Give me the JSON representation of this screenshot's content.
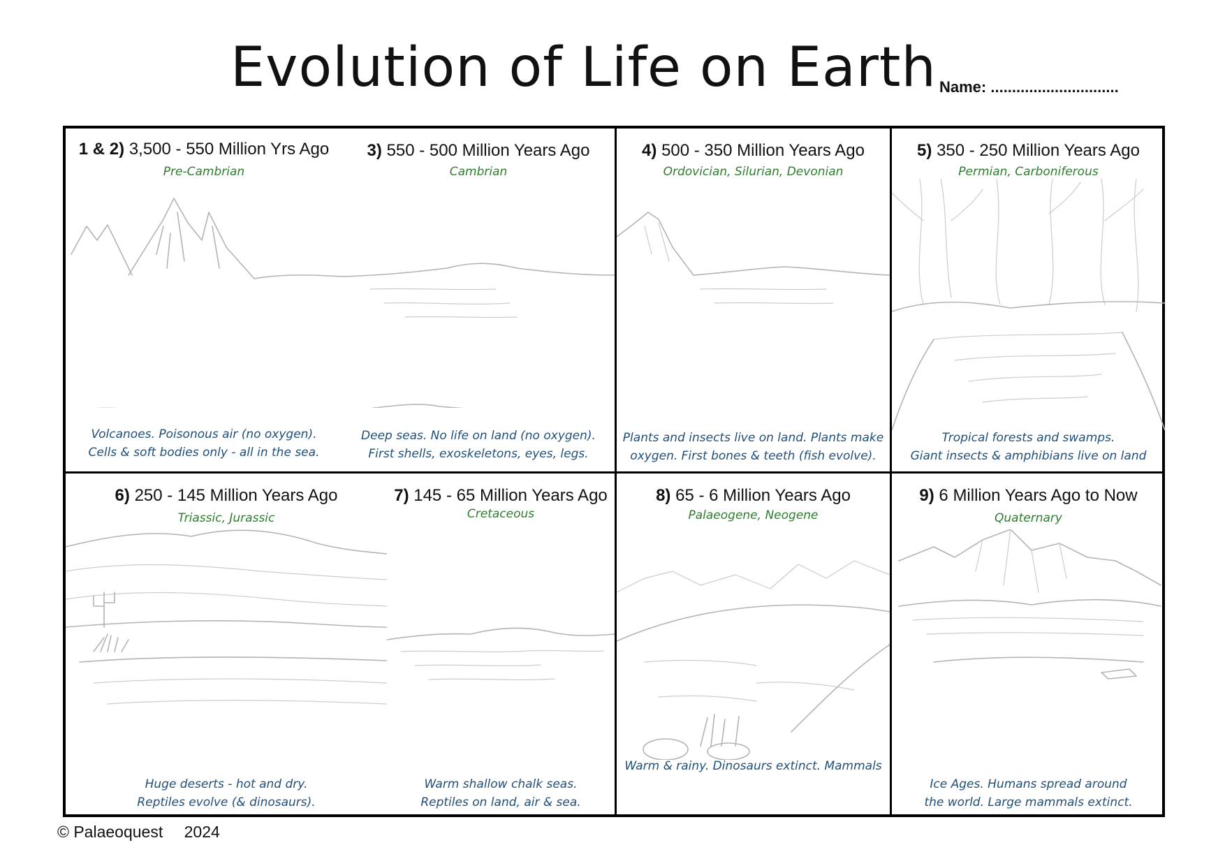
{
  "title": "Evolution of Life on Earth",
  "name_label": "Name: ..............................",
  "panels": [
    {
      "num": "1 & 2)",
      "range": "3,500 - 550 Million Yrs Ago",
      "period": "Pre-Cambrian",
      "caption1": "Volcanoes.  Poisonous air (no oxygen).",
      "caption2": "Cells & soft bodies only - all in the sea."
    },
    {
      "num": "3)",
      "range": "550 - 500 Million Years Ago",
      "period": "Cambrian",
      "caption1": "Deep seas.  No life on land  (no oxygen).",
      "caption2": "First shells, exoskeletons, eyes, legs."
    },
    {
      "num": "4)",
      "range": "500 - 350 Million Years Ago",
      "period": "Ordovician, Silurian, Devonian",
      "caption1": "Plants and insects live on land.  Plants make",
      "caption2": "oxygen.  First bones & teeth (fish evolve)."
    },
    {
      "num": "5)",
      "range": "350 - 250 Million Years Ago",
      "period": "Permian, Carboniferous",
      "caption1": "Tropical forests and swamps.",
      "caption2": "Giant insects & amphibians live on land"
    },
    {
      "num": "6)",
      "range": "250 - 145 Million Years Ago",
      "period": "Triassic,  Jurassic",
      "caption1": "Huge deserts - hot and dry.",
      "caption2": "Reptiles evolve (& dinosaurs)."
    },
    {
      "num": "7)",
      "range": "145 - 65 Million Years Ago",
      "period": "Cretaceous",
      "caption1": "Warm shallow chalk seas.",
      "caption2": "Reptiles on land, air & sea."
    },
    {
      "num": "8)",
      "range": "65 - 6 Million Years Ago",
      "period": "Palaeogene,  Neogene",
      "caption1": "",
      "caption2": "Warm & rainy.  Dinosaurs extinct.  Mammals"
    },
    {
      "num": "9)",
      "range": "6 Million Years Ago to Now",
      "period": "Quaternary",
      "caption1": "Ice Ages.  Humans spread around",
      "caption2": "the world.  Large mammals extinct."
    }
  ],
  "footer": {
    "copyright": "© Palaeoquest",
    "year": "2024"
  }
}
